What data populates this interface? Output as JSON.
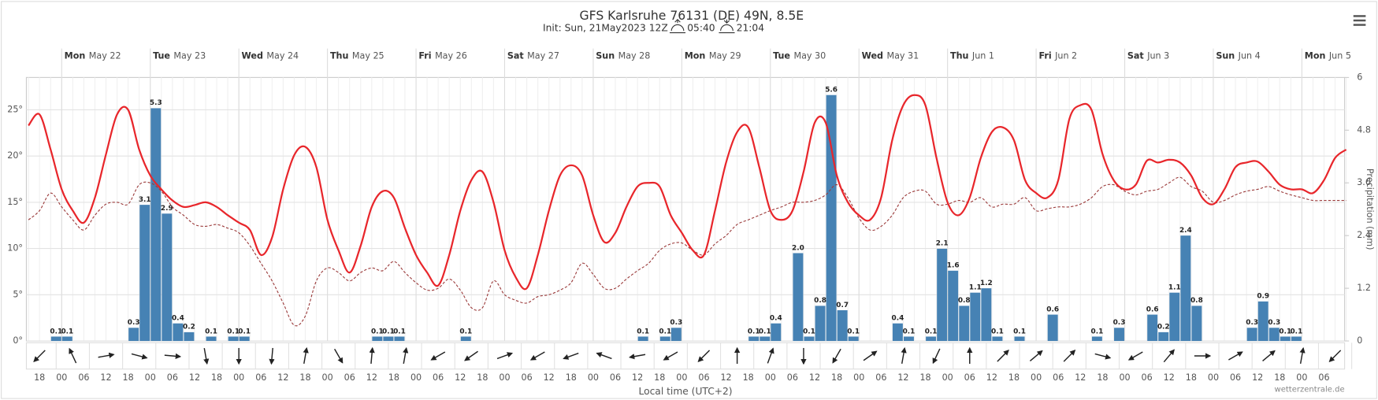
{
  "chart_data": {
    "type": "meteogram",
    "title": "GFS Karlsruhe 76131 (DE) 49N, 8.5E",
    "subtitle": "Init: Sun, 21May2023 12Z",
    "sunrise": "05:40",
    "sunset": "21:04",
    "x_label": "Local time (UTC+2)",
    "y2_label": "Precipitation (mm)",
    "credit": "wetterzentrale.de",
    "days": [
      {
        "weekday": "Mon",
        "date": "May 22"
      },
      {
        "weekday": "Tue",
        "date": "May 23"
      },
      {
        "weekday": "Wed",
        "date": "May 24"
      },
      {
        "weekday": "Thu",
        "date": "May 25"
      },
      {
        "weekday": "Fri",
        "date": "May 26"
      },
      {
        "weekday": "Sat",
        "date": "May 27"
      },
      {
        "weekday": "Sun",
        "date": "May 28"
      },
      {
        "weekday": "Mon",
        "date": "May 29"
      },
      {
        "weekday": "Tue",
        "date": "May 30"
      },
      {
        "weekday": "Wed",
        "date": "May 31"
      },
      {
        "weekday": "Thu",
        "date": "Jun 1"
      },
      {
        "weekday": "Fri",
        "date": "Jun 2"
      },
      {
        "weekday": "Sat",
        "date": "Jun 3"
      },
      {
        "weekday": "Sun",
        "date": "Jun 4"
      },
      {
        "weekday": "Mon",
        "date": "Jun 5"
      }
    ],
    "categories": [
      null,
      "18",
      null,
      "00",
      null,
      "06",
      null,
      "12",
      null,
      "18",
      null,
      "00",
      null,
      "06",
      null,
      "12",
      null,
      "18",
      null,
      "00",
      null,
      "06",
      null,
      "12",
      null,
      "18",
      null,
      "00",
      null,
      "06",
      null,
      "12",
      null,
      "18",
      null,
      "00",
      null,
      "06",
      null,
      "12",
      null,
      "18",
      null,
      "00",
      null,
      "06",
      null,
      "12",
      null,
      "18",
      null,
      "00",
      null,
      "06",
      null,
      "12",
      null,
      "18",
      null,
      "00",
      null,
      "06",
      null,
      "12",
      null,
      "18",
      null,
      "00",
      null,
      "06",
      null,
      "12",
      null,
      "18",
      null,
      "00",
      null,
      "06",
      null,
      "12",
      null,
      "18",
      null,
      "00",
      null,
      "06",
      null,
      "12",
      null,
      "18",
      null,
      "00",
      null,
      "06",
      null,
      "12",
      null,
      "18",
      null,
      "00",
      null,
      "06",
      null,
      "12",
      null,
      "18",
      null,
      "00",
      null,
      "06",
      null,
      "12",
      null,
      "18",
      null,
      "00",
      null,
      "06",
      null,
      null
    ],
    "ylim": [
      0,
      28.5
    ],
    "yticks": [
      {
        "value": 0,
        "label": "0°"
      },
      {
        "value": 5,
        "label": "5°"
      },
      {
        "value": 10,
        "label": "10°"
      },
      {
        "value": 15,
        "label": "15°"
      },
      {
        "value": 20,
        "label": "20°"
      },
      {
        "value": 25,
        "label": "25°"
      }
    ],
    "y2lim": [
      0,
      6
    ],
    "y2ticks": [
      0,
      1.2,
      2.4,
      3.6,
      4.8,
      6
    ],
    "grid": true,
    "series": [
      {
        "type": "line",
        "color": "#e8262b",
        "dashed": false,
        "values": [
          23.3,
          24.5,
          20.7,
          16.4,
          14.1,
          12.8,
          15.5,
          20.2,
          24.5,
          25.0,
          20.7,
          17.9,
          16.4,
          15.2,
          14.5,
          14.7,
          15.0,
          14.5,
          13.6,
          12.8,
          12.0,
          9.3,
          11.2,
          16.4,
          20.1,
          21.0,
          18.8,
          13.1,
          9.8,
          7.4,
          10.3,
          14.5,
          16.2,
          15.5,
          12.2,
          9.3,
          7.4,
          6.0,
          9.3,
          14.1,
          17.4,
          18.3,
          15.0,
          9.8,
          6.9,
          5.7,
          9.3,
          14.1,
          17.9,
          19.0,
          17.9,
          13.6,
          10.7,
          11.7,
          14.5,
          16.7,
          17.1,
          16.7,
          13.6,
          11.7,
          9.8,
          9.3,
          14.1,
          19.3,
          22.6,
          23.1,
          18.8,
          14.1,
          13.1,
          14.1,
          18.3,
          23.6,
          23.6,
          17.9,
          15.0,
          13.6,
          13.1,
          15.5,
          21.7,
          25.5,
          26.6,
          25.5,
          19.8,
          15.0,
          13.6,
          15.5,
          19.8,
          22.6,
          23.1,
          21.7,
          17.4,
          16.0,
          15.5,
          17.4,
          24.0,
          25.5,
          25.0,
          20.2,
          17.4,
          16.4,
          16.9,
          19.5,
          19.3,
          19.6,
          19.3,
          17.9,
          15.5,
          14.8,
          16.4,
          18.8,
          19.3,
          19.4,
          18.3,
          16.9,
          16.4,
          16.4,
          16.0,
          17.4,
          19.8,
          20.7
        ]
      },
      {
        "type": "line",
        "color": "#9b3b3b",
        "dashed": true,
        "values": [
          13.1,
          14.1,
          16.0,
          14.5,
          13.1,
          12.0,
          13.6,
          14.8,
          15.0,
          14.8,
          16.9,
          17.1,
          16.2,
          14.5,
          13.6,
          12.6,
          12.4,
          12.6,
          12.2,
          11.7,
          10.3,
          8.4,
          6.5,
          4.1,
          1.7,
          2.7,
          6.5,
          7.9,
          7.4,
          6.5,
          7.4,
          7.9,
          7.6,
          8.6,
          7.4,
          6.3,
          5.5,
          5.7,
          6.7,
          5.5,
          3.6,
          3.6,
          6.5,
          5.0,
          4.4,
          4.1,
          4.8,
          5.0,
          5.5,
          6.3,
          8.4,
          7.2,
          5.7,
          5.7,
          6.7,
          7.6,
          8.4,
          9.8,
          10.5,
          10.6,
          9.8,
          9.3,
          10.5,
          11.4,
          12.6,
          13.1,
          13.6,
          14.1,
          14.5,
          15.0,
          15.0,
          15.2,
          15.8,
          16.9,
          15.5,
          13.3,
          12.0,
          12.4,
          13.6,
          15.5,
          16.2,
          16.2,
          14.8,
          14.8,
          15.2,
          15.0,
          15.5,
          14.5,
          14.8,
          14.8,
          15.5,
          14.1,
          14.3,
          14.5,
          14.5,
          14.8,
          15.5,
          16.7,
          16.9,
          16.2,
          15.8,
          16.2,
          16.4,
          17.1,
          17.7,
          16.7,
          16.2,
          15.0,
          15.2,
          15.8,
          16.2,
          16.4,
          16.7,
          16.2,
          15.8,
          15.5,
          15.2,
          15.2,
          15.2,
          15.2
        ]
      },
      {
        "type": "bar",
        "color": "#4682b4",
        "axis": "y2",
        "values": [
          0,
          0,
          0.1,
          0.1,
          0,
          0,
          0,
          0,
          0,
          0.3,
          3.1,
          5.3,
          2.9,
          0.4,
          0.2,
          0,
          0.1,
          0,
          0.1,
          0.1,
          0,
          0,
          0,
          0,
          0,
          0,
          0,
          0,
          0,
          0,
          0,
          0.1,
          0.1,
          0.1,
          0,
          0,
          0,
          0,
          0,
          0.1,
          0,
          0,
          0,
          0,
          0,
          0,
          0,
          0,
          0,
          0,
          0,
          0,
          0,
          0,
          0,
          0.1,
          0,
          0.1,
          0.3,
          0,
          0,
          0,
          0,
          0,
          0,
          0.1,
          0.1,
          0.4,
          0,
          2.0,
          0.1,
          0.8,
          5.6,
          0.7,
          0.1,
          0,
          0,
          0,
          0.4,
          0.1,
          0,
          0.1,
          2.1,
          1.6,
          0.8,
          1.1,
          1.2,
          0.1,
          0,
          0.1,
          0,
          0,
          0.6,
          0,
          0,
          0,
          0.1,
          0,
          0.3,
          0,
          0,
          0.6,
          0.2,
          1.1,
          2.4,
          0.8,
          0,
          0,
          0,
          0,
          0.3,
          0.9,
          0.3,
          0.1,
          0.1,
          0,
          0,
          0,
          0,
          0
        ],
        "value_labels": [
          null,
          null,
          "0.1",
          "0.1",
          null,
          null,
          null,
          null,
          null,
          "0.3",
          "3.1",
          "5.3",
          "2.9",
          "0.4",
          "0.2",
          null,
          "0.1",
          null,
          "0.1",
          "0.1",
          null,
          null,
          null,
          null,
          null,
          null,
          null,
          null,
          null,
          null,
          null,
          "0.1",
          "0.1",
          "0.1",
          null,
          null,
          null,
          null,
          null,
          "0.1",
          null,
          null,
          null,
          null,
          null,
          null,
          null,
          null,
          null,
          null,
          null,
          null,
          null,
          null,
          null,
          "0.1",
          null,
          "0.1",
          "0.3",
          null,
          null,
          null,
          null,
          null,
          null,
          "0.1",
          "0.1",
          "0.4",
          null,
          "2.0",
          "0.1",
          "0.8",
          "5.6",
          "0.7",
          "0.1",
          null,
          null,
          null,
          "0.4",
          "0.1",
          null,
          "0.1",
          "2.1",
          "1.6",
          "0.8",
          "1.1",
          "1.2",
          "0.1",
          null,
          "0.1",
          null,
          null,
          "0.6",
          null,
          null,
          null,
          "0.1",
          null,
          "0.3",
          null,
          null,
          "0.6",
          "0.2",
          "1.1",
          "2.4",
          "0.8",
          null,
          null,
          null,
          null,
          "0.3",
          "0.9",
          "0.3",
          "0.1",
          "0.1",
          null,
          null,
          null,
          null,
          null
        ]
      }
    ],
    "wind_direction": [
      135,
      -115,
      -10,
      15,
      5,
      80,
      90,
      95,
      -80,
      60,
      -85,
      -80,
      150,
      145,
      -20,
      150,
      160,
      -160,
      170,
      150,
      135,
      -90,
      -70,
      90,
      120,
      -35,
      -80,
      115,
      -90,
      -45,
      -40,
      -45,
      15,
      150,
      -50,
      0,
      -30,
      -40,
      -80,
      135
    ]
  }
}
